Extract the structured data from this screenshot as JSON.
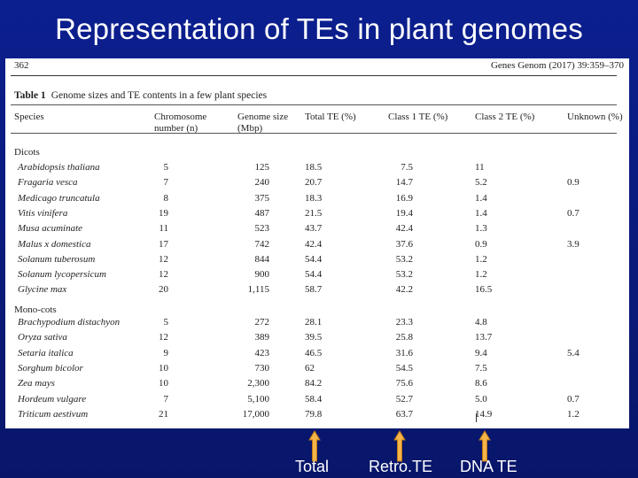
{
  "slide_title": "Representation of TEs in plant genomes",
  "header": {
    "page": "362",
    "citation": "Genes Genom (2017) 39:359–370"
  },
  "table_title": {
    "label": "Table 1",
    "text": "Genome sizes and TE contents in a few plant species"
  },
  "columns": {
    "species": "Species",
    "chromosome": [
      "Chromosome",
      "number (n)"
    ],
    "genome_size": [
      "Genome size",
      "(Mbp)"
    ],
    "total": "Total TE (%)",
    "class1": "Class 1 TE (%)",
    "class2": "Class 2 TE (%)",
    "unknown": "Unknown (%)"
  },
  "sections": {
    "dicots": "Dicots",
    "monocots": "Mono-cots"
  },
  "dicots": [
    [
      "Arabidopsis thaliana",
      "5",
      "125",
      "18.5",
      "7.5",
      "11",
      ""
    ],
    [
      "Fragaria vesca",
      "7",
      "240",
      "20.7",
      "14.7",
      "5.2",
      "0.9"
    ],
    [
      "Medicago truncatula",
      "8",
      "375",
      "18.3",
      "16.9",
      "1.4",
      ""
    ],
    [
      "Vitis vinifera",
      "19",
      "487",
      "21.5",
      "19.4",
      "1.4",
      "0.7"
    ],
    [
      "Musa acuminate",
      "11",
      "523",
      "43.7",
      "42.4",
      "1.3",
      ""
    ],
    [
      "Malus x domestica",
      "17",
      "742",
      "42.4",
      "37.6",
      "0.9",
      "3.9"
    ],
    [
      "Solanum tuberosum",
      "12",
      "844",
      "54.4",
      "53.2",
      "1.2",
      ""
    ],
    [
      "Solanum lycopersicum",
      "12",
      "900",
      "54.4",
      "53.2",
      "1.2",
      ""
    ],
    [
      "Glycine max",
      "20",
      "1,115",
      "58.7",
      "42.2",
      "16.5",
      ""
    ]
  ],
  "monocots": [
    [
      "Brachypodium distachyon",
      "5",
      "272",
      "28.1",
      "23.3",
      "4.8",
      ""
    ],
    [
      "Oryza sativa",
      "12",
      "389",
      "39.5",
      "25.8",
      "13.7",
      ""
    ],
    [
      "Setaria italica",
      "9",
      "423",
      "46.5",
      "31.6",
      "9.4",
      "5.4"
    ],
    [
      "Sorghum bicolor",
      "10",
      "730",
      "62",
      "54.5",
      "7.5",
      ""
    ],
    [
      "Zea mays",
      "10",
      "2,300",
      "84.2",
      "75.6",
      "8.6",
      ""
    ],
    [
      "Hordeum vulgare",
      "7",
      "5,100",
      "58.4",
      "52.7",
      "5.0",
      "0.7"
    ],
    [
      "Triticum aestivum",
      "21",
      "17,000",
      "79.8",
      "63.7",
      "14.9",
      "1.2"
    ]
  ],
  "arrows": {
    "total": "Total",
    "retro": "Retro.TE",
    "dna": "DNA TE"
  },
  "colors": {
    "arrow_fill": "#f5b44a",
    "arrow_stroke": "#c07a12",
    "background": "#0b1f8f"
  }
}
